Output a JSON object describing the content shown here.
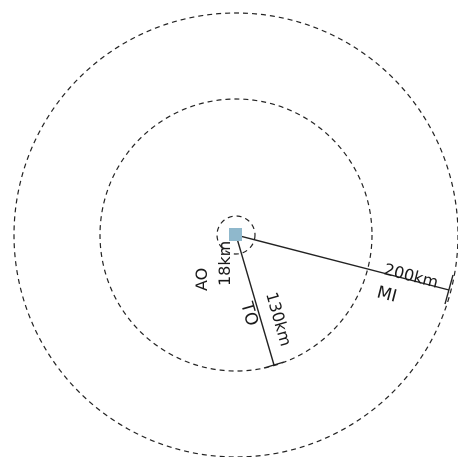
{
  "diagram": {
    "center_marker_color": "#8fb8cc",
    "line_color": "#222222",
    "zones": [
      {
        "code": "AO",
        "radius_label": "18km"
      },
      {
        "code": "TO",
        "radius_label": "130km"
      },
      {
        "code": "MI",
        "radius_label": "200km"
      }
    ]
  }
}
